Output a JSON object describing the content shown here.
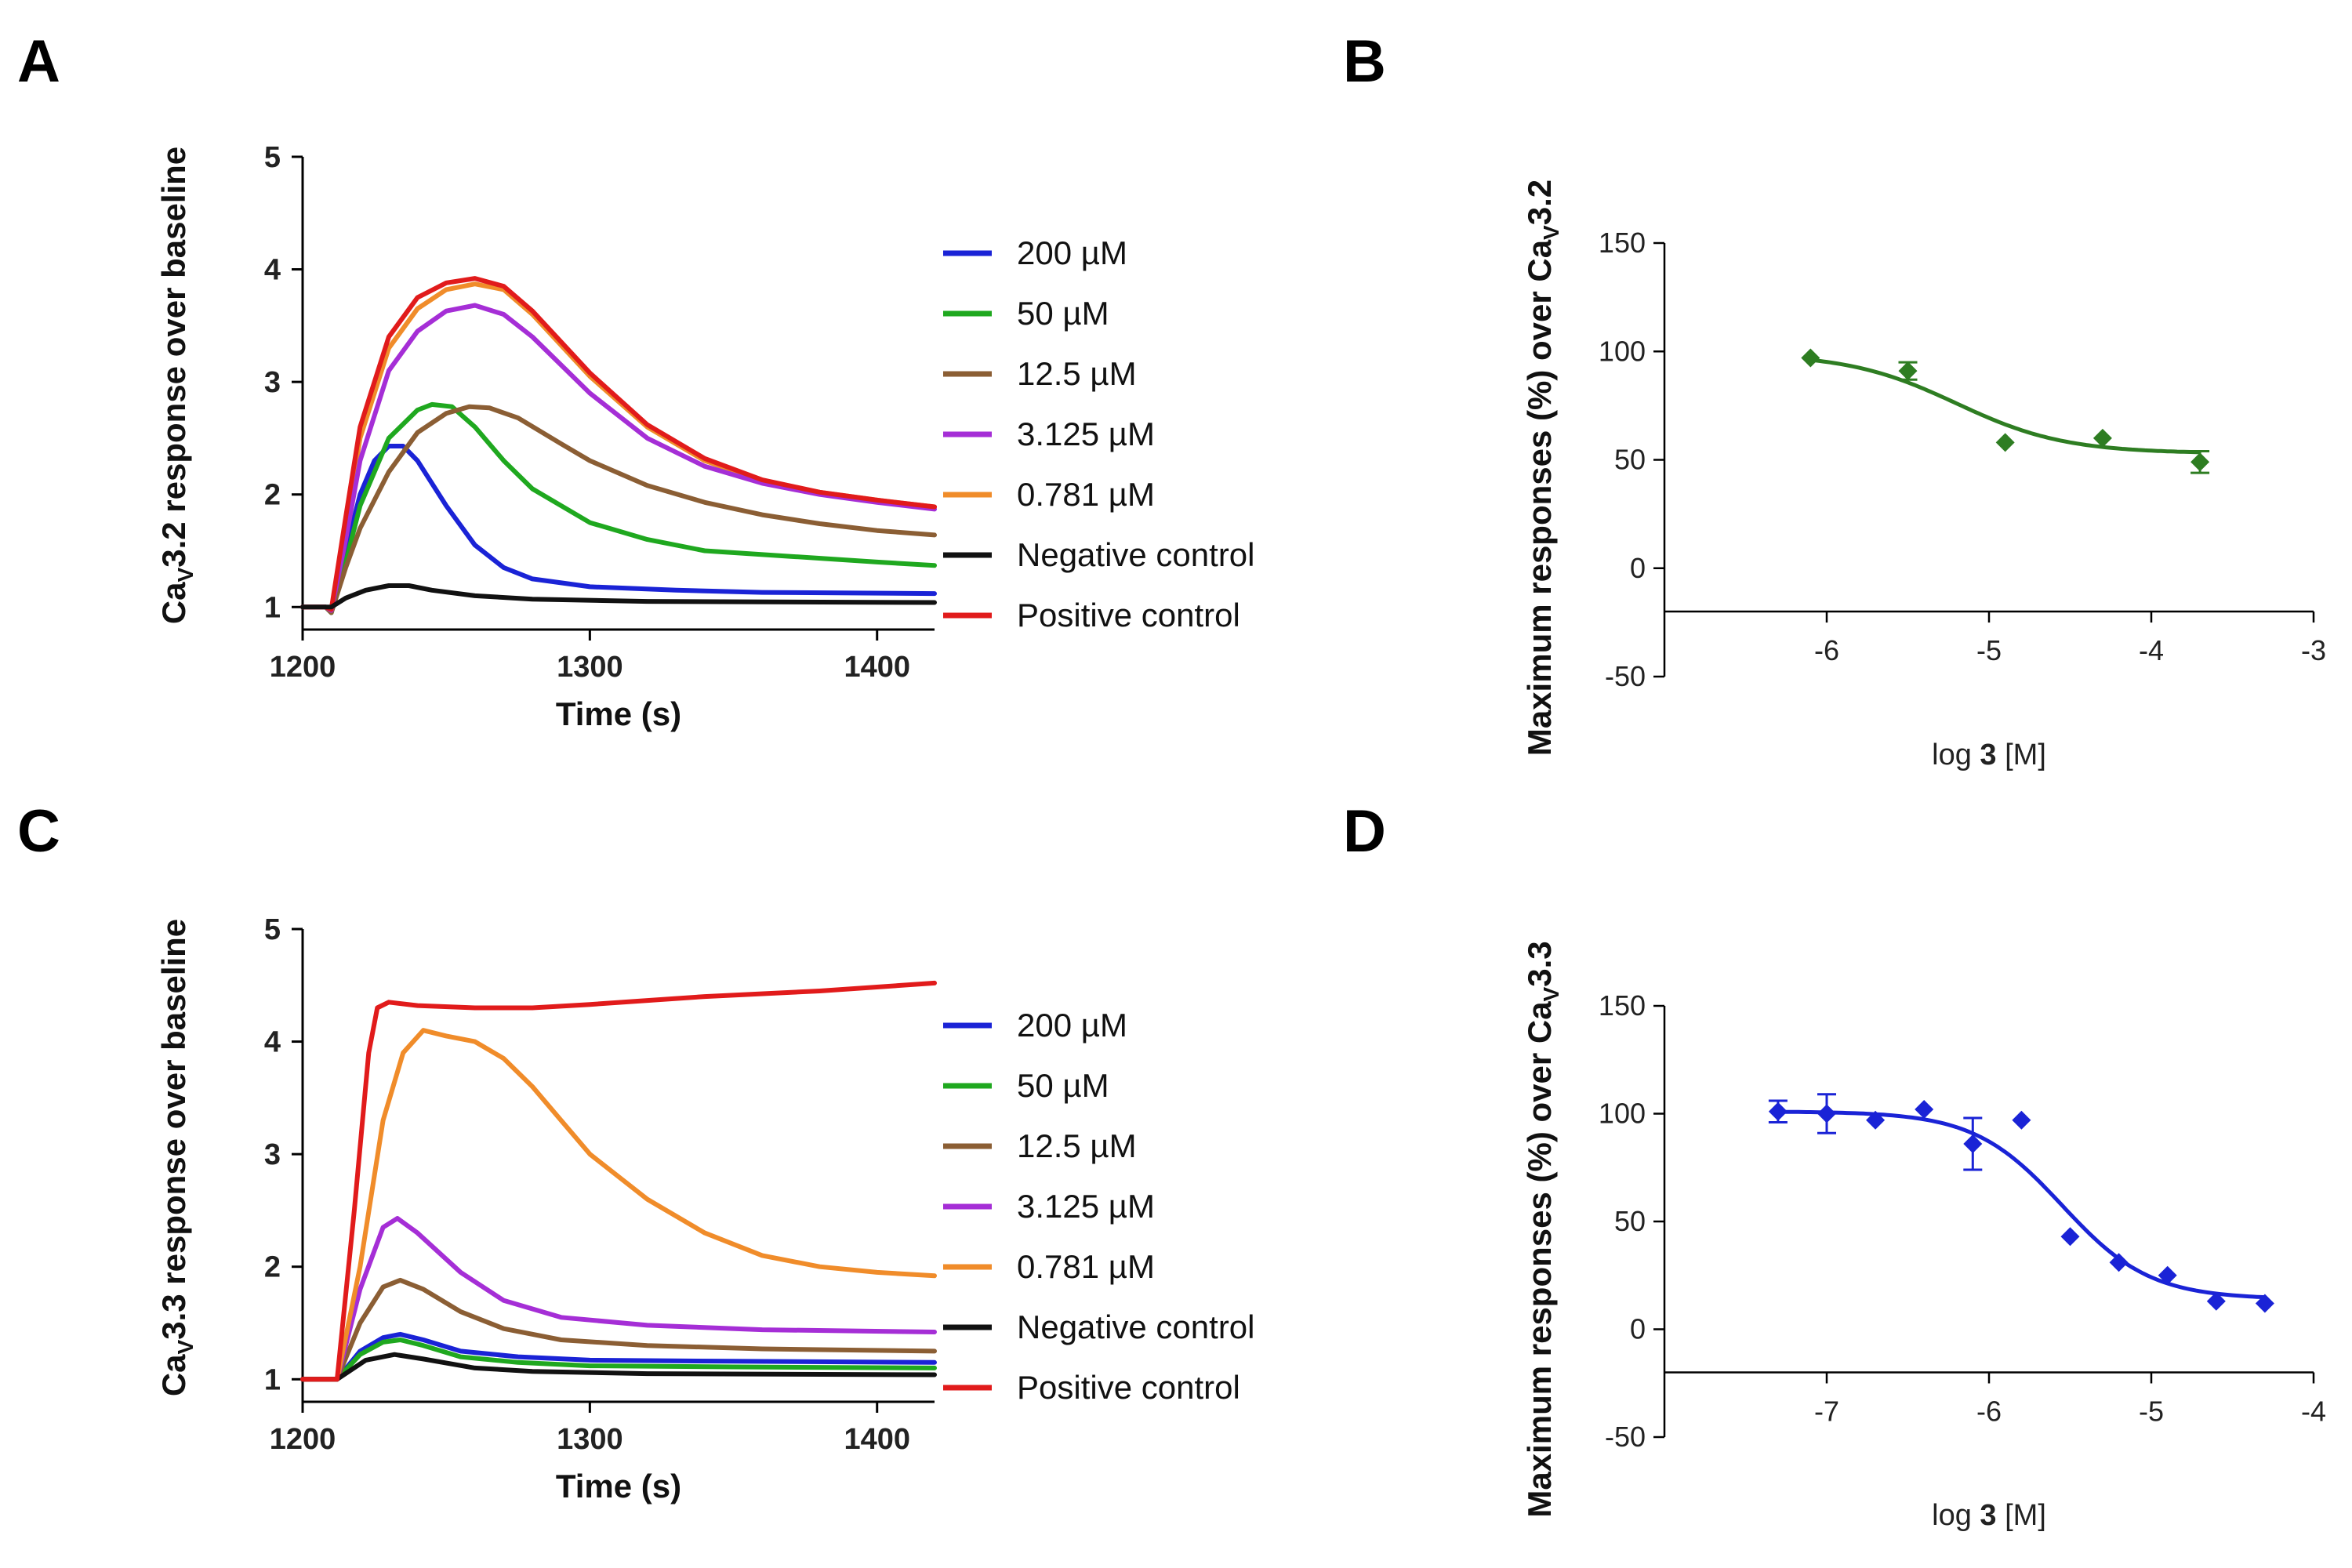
{
  "chart_data": [
    {
      "panel": "A",
      "type": "line",
      "xlabel": "Time (s)",
      "ylabel": "Ca_v3.2 response over baseline",
      "ylabel_parts": {
        "pre": "Ca",
        "sub": "V",
        "post": "3.2 response over baseline"
      },
      "xlim": [
        1200,
        1420
      ],
      "ylim": [
        0.8,
        5
      ],
      "xticks": [
        1200,
        1300,
        1400
      ],
      "yticks": [
        1,
        2,
        3,
        4,
        5
      ],
      "series": [
        {
          "name": "200 µM",
          "color": "#1a23d6",
          "points": [
            [
              1200,
              1.0
            ],
            [
              1208,
              1.0
            ],
            [
              1210,
              0.95
            ],
            [
              1215,
              1.5
            ],
            [
              1220,
              2.0
            ],
            [
              1225,
              2.3
            ],
            [
              1230,
              2.43
            ],
            [
              1235,
              2.43
            ],
            [
              1240,
              2.3
            ],
            [
              1250,
              1.9
            ],
            [
              1260,
              1.55
            ],
            [
              1270,
              1.35
            ],
            [
              1280,
              1.25
            ],
            [
              1300,
              1.18
            ],
            [
              1330,
              1.15
            ],
            [
              1360,
              1.13
            ],
            [
              1420,
              1.12
            ]
          ]
        },
        {
          "name": "50 µM",
          "color": "#1fa81f",
          "points": [
            [
              1200,
              1.0
            ],
            [
              1208,
              1.0
            ],
            [
              1210,
              0.95
            ],
            [
              1215,
              1.4
            ],
            [
              1220,
              1.9
            ],
            [
              1230,
              2.5
            ],
            [
              1240,
              2.75
            ],
            [
              1245,
              2.8
            ],
            [
              1252,
              2.78
            ],
            [
              1260,
              2.6
            ],
            [
              1270,
              2.3
            ],
            [
              1280,
              2.05
            ],
            [
              1300,
              1.75
            ],
            [
              1320,
              1.6
            ],
            [
              1340,
              1.5
            ],
            [
              1370,
              1.45
            ],
            [
              1400,
              1.4
            ],
            [
              1420,
              1.37
            ]
          ]
        },
        {
          "name": "12.5 µM",
          "color": "#8b5e34",
          "points": [
            [
              1200,
              1.0
            ],
            [
              1208,
              1.0
            ],
            [
              1210,
              0.95
            ],
            [
              1215,
              1.35
            ],
            [
              1220,
              1.7
            ],
            [
              1230,
              2.2
            ],
            [
              1240,
              2.55
            ],
            [
              1250,
              2.72
            ],
            [
              1258,
              2.78
            ],
            [
              1265,
              2.77
            ],
            [
              1275,
              2.68
            ],
            [
              1290,
              2.45
            ],
            [
              1300,
              2.3
            ],
            [
              1320,
              2.08
            ],
            [
              1340,
              1.93
            ],
            [
              1360,
              1.82
            ],
            [
              1380,
              1.74
            ],
            [
              1400,
              1.68
            ],
            [
              1420,
              1.64
            ]
          ]
        },
        {
          "name": "3.125 µM",
          "color": "#a52ed6",
          "points": [
            [
              1200,
              1.0
            ],
            [
              1208,
              1.0
            ],
            [
              1210,
              0.97
            ],
            [
              1215,
              1.6
            ],
            [
              1220,
              2.3
            ],
            [
              1230,
              3.1
            ],
            [
              1240,
              3.45
            ],
            [
              1250,
              3.63
            ],
            [
              1260,
              3.68
            ],
            [
              1270,
              3.6
            ],
            [
              1280,
              3.4
            ],
            [
              1300,
              2.9
            ],
            [
              1320,
              2.5
            ],
            [
              1340,
              2.25
            ],
            [
              1360,
              2.1
            ],
            [
              1380,
              2.0
            ],
            [
              1400,
              1.93
            ],
            [
              1420,
              1.87
            ]
          ]
        },
        {
          "name": "0.781 µM",
          "color": "#f08c2a",
          "points": [
            [
              1200,
              1.0
            ],
            [
              1208,
              1.0
            ],
            [
              1210,
              0.97
            ],
            [
              1215,
              1.7
            ],
            [
              1220,
              2.5
            ],
            [
              1230,
              3.3
            ],
            [
              1240,
              3.65
            ],
            [
              1250,
              3.82
            ],
            [
              1260,
              3.87
            ],
            [
              1270,
              3.82
            ],
            [
              1280,
              3.6
            ],
            [
              1300,
              3.05
            ],
            [
              1320,
              2.6
            ],
            [
              1340,
              2.3
            ],
            [
              1360,
              2.12
            ],
            [
              1380,
              2.02
            ],
            [
              1400,
              1.95
            ],
            [
              1420,
              1.89
            ]
          ]
        },
        {
          "name": "Negative control",
          "color": "#111111",
          "points": [
            [
              1200,
              1.0
            ],
            [
              1210,
              1.0
            ],
            [
              1215,
              1.08
            ],
            [
              1222,
              1.15
            ],
            [
              1230,
              1.19
            ],
            [
              1237,
              1.19
            ],
            [
              1245,
              1.15
            ],
            [
              1260,
              1.1
            ],
            [
              1280,
              1.07
            ],
            [
              1320,
              1.05
            ],
            [
              1420,
              1.04
            ]
          ]
        },
        {
          "name": "Positive control",
          "color": "#e11b1b",
          "points": [
            [
              1200,
              1.0
            ],
            [
              1208,
              1.0
            ],
            [
              1210,
              0.98
            ],
            [
              1215,
              1.8
            ],
            [
              1220,
              2.6
            ],
            [
              1230,
              3.4
            ],
            [
              1240,
              3.75
            ],
            [
              1250,
              3.88
            ],
            [
              1260,
              3.92
            ],
            [
              1270,
              3.85
            ],
            [
              1280,
              3.63
            ],
            [
              1300,
              3.08
            ],
            [
              1320,
              2.62
            ],
            [
              1340,
              2.32
            ],
            [
              1360,
              2.13
            ],
            [
              1380,
              2.02
            ],
            [
              1400,
              1.95
            ],
            [
              1420,
              1.89
            ]
          ]
        }
      ]
    },
    {
      "panel": "B",
      "type": "scatter",
      "xlabel": "log 3 [M]",
      "xlabel_parts": {
        "pre": "log ",
        "bold": "3",
        "post": " [M]"
      },
      "ylabel": "Maximum responses (%) over Ca_v3.2",
      "ylabel_parts": {
        "pre": "Maximum responses (%) over Ca",
        "sub": "V",
        "post": "3.2"
      },
      "xlim": [
        -7,
        -3
      ],
      "ylim": [
        -50,
        150
      ],
      "x_axis_at_y": -20,
      "xticks": [
        -6,
        -5,
        -4,
        -3
      ],
      "yticks": [
        -50,
        0,
        50,
        100,
        150
      ],
      "color": "#2e7d22",
      "points": [
        {
          "x": -6.1,
          "y": 97,
          "err": 0
        },
        {
          "x": -5.5,
          "y": 91,
          "err": 4
        },
        {
          "x": -4.9,
          "y": 58,
          "err": 0
        },
        {
          "x": -4.3,
          "y": 60,
          "err": 0
        },
        {
          "x": -3.7,
          "y": 49,
          "err": 5
        }
      ],
      "fit": {
        "top": 99,
        "bottom": 53,
        "logIC50": -5.2,
        "hill": 1.3
      }
    },
    {
      "panel": "C",
      "type": "line",
      "xlabel": "Time (s)",
      "ylabel": "Ca_v3.3 response over baseline",
      "ylabel_parts": {
        "pre": "Ca",
        "sub": "V",
        "post": "3.3 response over baseline"
      },
      "xlim": [
        1200,
        1420
      ],
      "ylim": [
        0.8,
        5
      ],
      "xticks": [
        1200,
        1300,
        1400
      ],
      "yticks": [
        1,
        2,
        3,
        4,
        5
      ],
      "series": [
        {
          "name": "200 µM",
          "color": "#1a23d6",
          "points": [
            [
              1200,
              1.0
            ],
            [
              1208,
              1.0
            ],
            [
              1212,
              1.0
            ],
            [
              1220,
              1.25
            ],
            [
              1228,
              1.37
            ],
            [
              1234,
              1.4
            ],
            [
              1242,
              1.35
            ],
            [
              1255,
              1.25
            ],
            [
              1275,
              1.2
            ],
            [
              1300,
              1.17
            ],
            [
              1350,
              1.16
            ],
            [
              1420,
              1.15
            ]
          ]
        },
        {
          "name": "50 µM",
          "color": "#1fa81f",
          "points": [
            [
              1200,
              1.0
            ],
            [
              1208,
              1.0
            ],
            [
              1212,
              1.0
            ],
            [
              1220,
              1.22
            ],
            [
              1228,
              1.33
            ],
            [
              1234,
              1.35
            ],
            [
              1242,
              1.3
            ],
            [
              1255,
              1.2
            ],
            [
              1275,
              1.15
            ],
            [
              1300,
              1.12
            ],
            [
              1350,
              1.11
            ],
            [
              1420,
              1.1
            ]
          ]
        },
        {
          "name": "12.5 µM",
          "color": "#8b5e34",
          "points": [
            [
              1200,
              1.0
            ],
            [
              1208,
              1.0
            ],
            [
              1212,
              1.0
            ],
            [
              1220,
              1.5
            ],
            [
              1228,
              1.82
            ],
            [
              1234,
              1.88
            ],
            [
              1242,
              1.8
            ],
            [
              1255,
              1.6
            ],
            [
              1270,
              1.45
            ],
            [
              1290,
              1.35
            ],
            [
              1320,
              1.3
            ],
            [
              1360,
              1.27
            ],
            [
              1420,
              1.25
            ]
          ]
        },
        {
          "name": "3.125 µM",
          "color": "#a52ed6",
          "points": [
            [
              1200,
              1.0
            ],
            [
              1208,
              1.0
            ],
            [
              1212,
              1.0
            ],
            [
              1220,
              1.8
            ],
            [
              1228,
              2.35
            ],
            [
              1233,
              2.43
            ],
            [
              1240,
              2.3
            ],
            [
              1255,
              1.95
            ],
            [
              1270,
              1.7
            ],
            [
              1290,
              1.55
            ],
            [
              1320,
              1.48
            ],
            [
              1360,
              1.44
            ],
            [
              1420,
              1.42
            ]
          ]
        },
        {
          "name": "0.781 µM",
          "color": "#f08c2a",
          "points": [
            [
              1200,
              1.0
            ],
            [
              1208,
              1.0
            ],
            [
              1212,
              1.0
            ],
            [
              1220,
              2.0
            ],
            [
              1228,
              3.3
            ],
            [
              1235,
              3.9
            ],
            [
              1242,
              4.1
            ],
            [
              1250,
              4.05
            ],
            [
              1260,
              4.0
            ],
            [
              1270,
              3.85
            ],
            [
              1280,
              3.6
            ],
            [
              1290,
              3.3
            ],
            [
              1300,
              3.0
            ],
            [
              1320,
              2.6
            ],
            [
              1340,
              2.3
            ],
            [
              1360,
              2.1
            ],
            [
              1380,
              2.0
            ],
            [
              1400,
              1.95
            ],
            [
              1420,
              1.92
            ]
          ]
        },
        {
          "name": "Negative control",
          "color": "#111111",
          "points": [
            [
              1200,
              1.0
            ],
            [
              1208,
              1.0
            ],
            [
              1212,
              1.0
            ],
            [
              1222,
              1.17
            ],
            [
              1232,
              1.22
            ],
            [
              1242,
              1.18
            ],
            [
              1260,
              1.1
            ],
            [
              1280,
              1.07
            ],
            [
              1320,
              1.05
            ],
            [
              1420,
              1.04
            ]
          ]
        },
        {
          "name": "Positive control",
          "color": "#e11b1b",
          "points": [
            [
              1200,
              1.0
            ],
            [
              1208,
              1.0
            ],
            [
              1212,
              1.0
            ],
            [
              1218,
              2.5
            ],
            [
              1223,
              3.9
            ],
            [
              1226,
              4.3
            ],
            [
              1230,
              4.35
            ],
            [
              1240,
              4.32
            ],
            [
              1260,
              4.3
            ],
            [
              1280,
              4.3
            ],
            [
              1300,
              4.33
            ],
            [
              1340,
              4.4
            ],
            [
              1380,
              4.45
            ],
            [
              1420,
              4.52
            ]
          ]
        }
      ]
    },
    {
      "panel": "D",
      "type": "scatter",
      "xlabel": "log 3 [M]",
      "xlabel_parts": {
        "pre": "log ",
        "bold": "3",
        "post": " [M]"
      },
      "ylabel": "Maximum responses (%) over Ca_v3.3",
      "ylabel_parts": {
        "pre": "Maximum responses (%) over Ca",
        "sub": "V",
        "post": "3.3"
      },
      "xlim": [
        -8,
        -4
      ],
      "ylim": [
        -50,
        150
      ],
      "x_axis_at_y": -20,
      "xticks": [
        -7,
        -6,
        -5,
        -4
      ],
      "yticks": [
        -50,
        0,
        50,
        100,
        150
      ],
      "color": "#1a23d6",
      "points": [
        {
          "x": -7.3,
          "y": 101,
          "err": 5
        },
        {
          "x": -7.0,
          "y": 100,
          "err": 9
        },
        {
          "x": -6.7,
          "y": 97,
          "err": 0
        },
        {
          "x": -6.4,
          "y": 102,
          "err": 0
        },
        {
          "x": -6.1,
          "y": 86,
          "err": 12
        },
        {
          "x": -5.8,
          "y": 97,
          "err": 0
        },
        {
          "x": -5.5,
          "y": 43,
          "err": 0
        },
        {
          "x": -5.2,
          "y": 31,
          "err": 0
        },
        {
          "x": -4.9,
          "y": 25,
          "err": 0
        },
        {
          "x": -4.6,
          "y": 13,
          "err": 0
        },
        {
          "x": -4.3,
          "y": 12,
          "err": 0
        }
      ],
      "fit": {
        "top": 101,
        "bottom": 14,
        "logIC50": -5.55,
        "hill": 1.6
      }
    }
  ]
}
